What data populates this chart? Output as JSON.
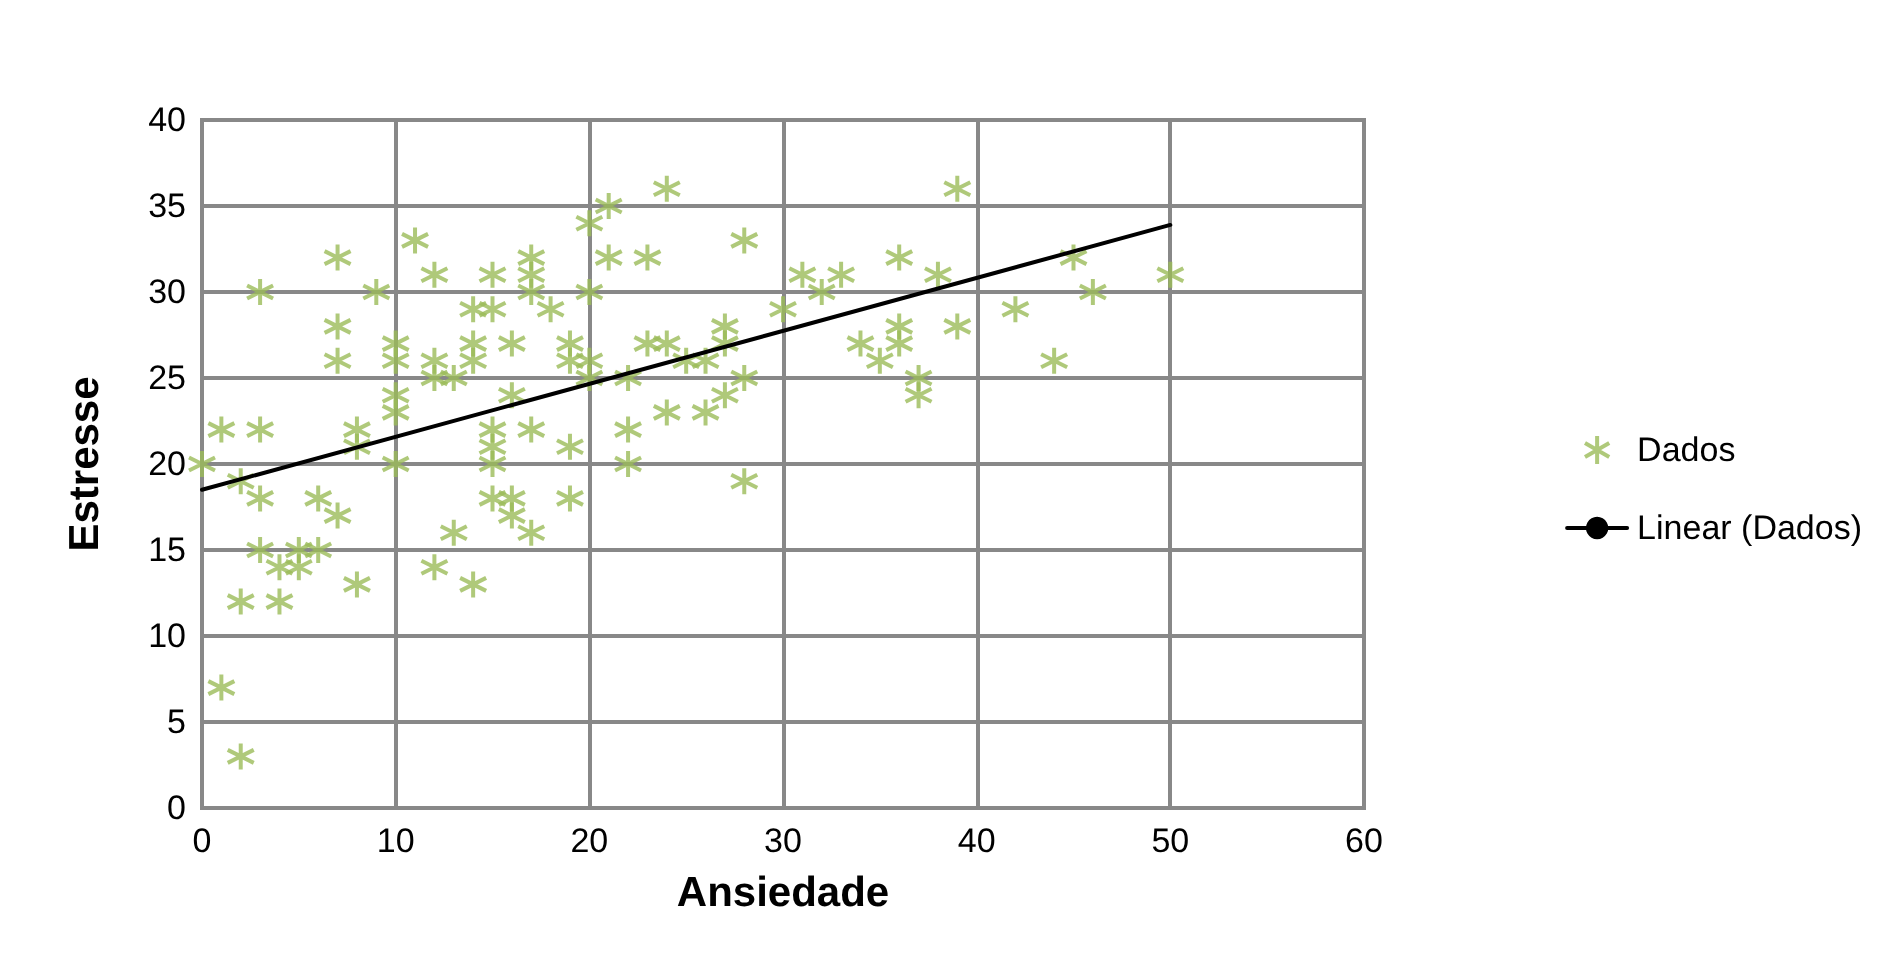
{
  "chart_data": {
    "type": "scatter",
    "xlabel": "Ansiedade",
    "ylabel": "Estresse",
    "xlim": [
      0,
      60
    ],
    "xticks": [
      0,
      10,
      20,
      30,
      40,
      50,
      60
    ],
    "ylim": [
      0,
      40
    ],
    "yticks": [
      0,
      5,
      10,
      15,
      20,
      25,
      30,
      35,
      40
    ],
    "grid": true,
    "legend": "right",
    "marker": "cross",
    "series": [
      {
        "name": "Dados",
        "color": "#9bbb59",
        "x": [
          0,
          1,
          1,
          2,
          2,
          2,
          3,
          3,
          3,
          3,
          4,
          4,
          5,
          5,
          6,
          6,
          7,
          7,
          7,
          7,
          8,
          8,
          8,
          9,
          10,
          10,
          10,
          10,
          10,
          11,
          12,
          12,
          12,
          12,
          13,
          13,
          14,
          14,
          14,
          14,
          15,
          15,
          15,
          15,
          15,
          15,
          16,
          16,
          16,
          16,
          17,
          17,
          17,
          17,
          17,
          18,
          19,
          19,
          19,
          19,
          20,
          20,
          20,
          20,
          21,
          21,
          22,
          22,
          22,
          23,
          23,
          24,
          24,
          24,
          25,
          26,
          26,
          27,
          27,
          27,
          28,
          28,
          28,
          30,
          31,
          32,
          33,
          34,
          35,
          36,
          36,
          36,
          37,
          37,
          38,
          39,
          39,
          42,
          44,
          45,
          46,
          50
        ],
        "values": [
          20,
          22,
          7,
          3,
          12,
          19,
          22,
          30,
          18,
          15,
          14,
          12,
          15,
          14,
          15,
          18,
          17,
          32,
          28,
          26,
          22,
          21,
          13,
          30,
          27,
          26,
          24,
          23,
          20,
          33,
          31,
          26,
          25,
          14,
          25,
          16,
          29,
          27,
          26,
          13,
          31,
          29,
          22,
          21,
          20,
          18,
          24,
          18,
          17,
          27,
          32,
          31,
          30,
          22,
          16,
          29,
          26,
          27,
          21,
          18,
          34,
          30,
          25,
          26,
          35,
          32,
          25,
          22,
          20,
          32,
          27,
          36,
          27,
          23,
          26,
          26,
          23,
          28,
          27,
          24,
          33,
          25,
          19,
          29,
          31,
          30,
          31,
          27,
          26,
          32,
          28,
          27,
          25,
          24,
          31,
          36,
          28,
          29,
          26,
          32,
          30,
          31
        ]
      },
      {
        "name": "Linear (Dados)",
        "type": "line",
        "color": "#000000",
        "marker": "none",
        "line_style": "solid",
        "x": [
          0,
          50
        ],
        "values": [
          18.5,
          33.9
        ]
      }
    ]
  }
}
